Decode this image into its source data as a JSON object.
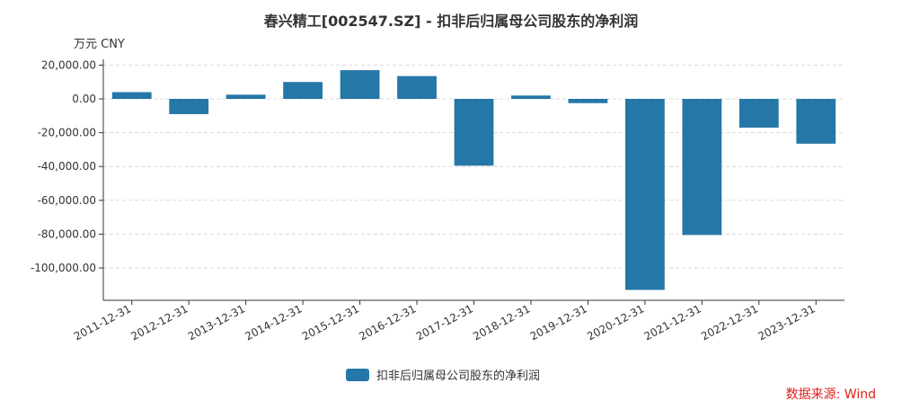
{
  "chart_data": {
    "type": "bar",
    "title": "春兴精工[002547.SZ] - 扣非后归属母公司股东的净利润",
    "unit_label": "万元  CNY",
    "categories": [
      "2011-12-31",
      "2012-12-31",
      "2013-12-31",
      "2014-12-31",
      "2015-12-31",
      "2016-12-31",
      "2017-12-31",
      "2018-12-31",
      "2019-12-31",
      "2020-12-31",
      "2021-12-31",
      "2022-12-31",
      "2023-12-31"
    ],
    "series": [
      {
        "name": "扣非后归属母公司股东的净利润",
        "color": "#2577a7",
        "values": [
          4000,
          -9000,
          2500,
          10000,
          17000,
          13500,
          -39500,
          2000,
          -2500,
          -113000,
          -80500,
          -17000,
          -26500
        ]
      }
    ],
    "ylim": [
      -120000,
      20000
    ],
    "yticks": [
      20000,
      0,
      -20000,
      -40000,
      -60000,
      -80000,
      -100000
    ],
    "ytick_labels": [
      "20,000.00",
      "0.00",
      "-20,000.00",
      "-40,000.00",
      "-60,000.00",
      "-80,000.00",
      "-100,000.00"
    ],
    "grid": true,
    "legend_position": "bottom-center"
  },
  "source_note": "数据来源: Wind"
}
